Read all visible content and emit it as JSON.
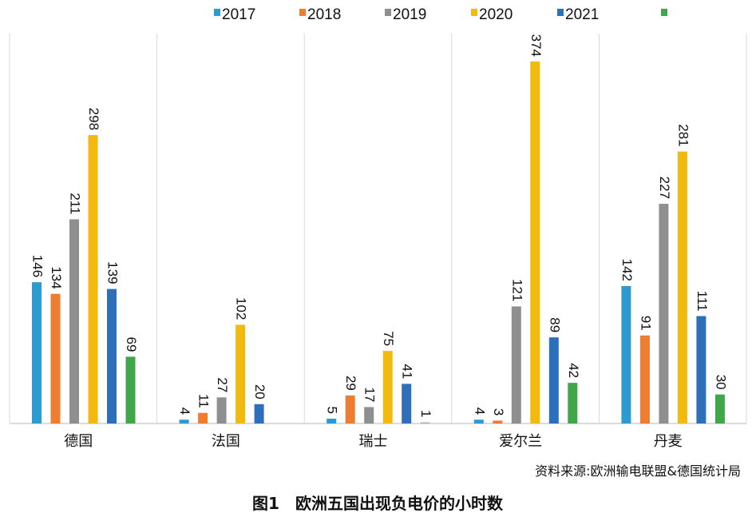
{
  "chart_data": {
    "type": "bar",
    "title": "图1　欧洲五国出现负电价的小时数",
    "source": "资料来源:欧洲输电联盟&德国统计局",
    "categories": [
      "德国",
      "法国",
      "瑞士",
      "爱尔兰",
      "丹麦"
    ],
    "series": [
      {
        "name": "2017",
        "color": "#2e9bd0",
        "values": [
          146,
          4,
          5,
          4,
          142
        ]
      },
      {
        "name": "2018",
        "color": "#ec7d31",
        "values": [
          134,
          11,
          29,
          3,
          91
        ]
      },
      {
        "name": "2019",
        "color": "#8f8f8f",
        "values": [
          211,
          27,
          17,
          121,
          227
        ]
      },
      {
        "name": "2020",
        "color": "#f2b90f",
        "values": [
          298,
          102,
          75,
          374,
          281
        ]
      },
      {
        "name": "2021",
        "color": "#2e6fba",
        "values": [
          139,
          20,
          41,
          89,
          111
        ]
      },
      {
        "name": "",
        "color": "#3fa64a",
        "values": [
          69,
          null,
          1,
          42,
          30
        ]
      }
    ],
    "ylim": [
      0,
      400
    ],
    "legend_position": "top",
    "grid": false
  }
}
